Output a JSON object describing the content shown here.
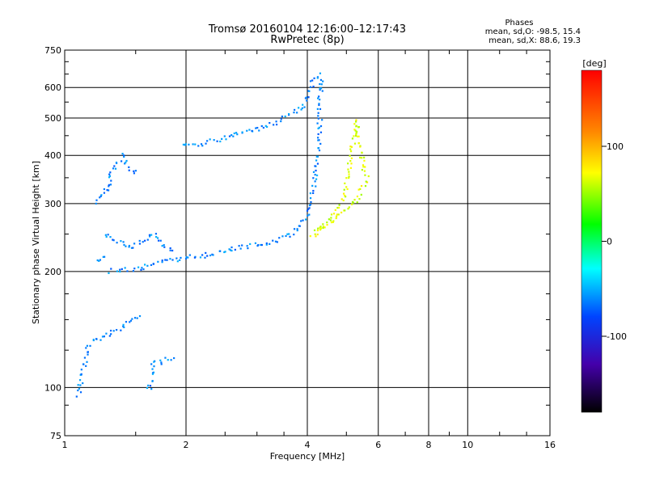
{
  "chart_data": {
    "type": "scatter",
    "title": "Tromsø 20160104 12:16:00–12:17:43",
    "subtitle": "RwPretec (8p)",
    "stats": {
      "heading": "Phases",
      "line1": "mean, sd,O: -98.5, 15.4",
      "line2": "mean, sd,X: 88.6, 19.3"
    },
    "xlabel": "Frequency [MHz]",
    "ylabel": "Stationary phase Virtual Height [km]",
    "xscale": "log",
    "yscale": "log",
    "xlim": [
      1,
      16
    ],
    "ylim": [
      75,
      750
    ],
    "grid": true,
    "x_major_ticks": [
      1,
      2,
      4,
      6,
      8,
      10,
      16
    ],
    "x_tick_labels": [
      "1",
      "2",
      "4",
      "6",
      "8",
      "10",
      "16"
    ],
    "y_major_ticks": [
      75,
      100,
      200,
      300,
      400,
      500,
      600,
      750
    ],
    "y_tick_labels": [
      "75",
      "100",
      "200",
      "300",
      "400",
      "500",
      "600",
      "750"
    ],
    "colorbar": {
      "label": "[deg]",
      "range": [
        -180,
        180
      ],
      "ticks": [
        100,
        0,
        -100
      ],
      "tick_labels": [
        "100",
        "0",
        "-100"
      ]
    },
    "series": [
      {
        "mode": "O",
        "phase_mean": -98.5,
        "phase_sd": 15.4,
        "points": [
          [
            1.3,
            200
          ],
          [
            1.4,
            202
          ],
          [
            1.55,
            205
          ],
          [
            1.7,
            210
          ],
          [
            1.9,
            215
          ],
          [
            2.1,
            218
          ],
          [
            2.3,
            222
          ],
          [
            2.5,
            226
          ],
          [
            2.7,
            230
          ],
          [
            2.9,
            233
          ],
          [
            3.1,
            236
          ],
          [
            3.3,
            240
          ],
          [
            3.5,
            245
          ],
          [
            3.7,
            252
          ],
          [
            3.85,
            262
          ],
          [
            3.95,
            275
          ],
          [
            4.05,
            292
          ],
          [
            4.12,
            315
          ],
          [
            4.18,
            345
          ],
          [
            4.22,
            380
          ],
          [
            4.25,
            420
          ],
          [
            4.27,
            460
          ],
          [
            4.29,
            500
          ],
          [
            4.3,
            540
          ],
          [
            4.31,
            580
          ],
          [
            4.32,
            620
          ],
          [
            4.3,
            645
          ],
          [
            4.2,
            640
          ],
          [
            4.1,
            615
          ],
          [
            4.05,
            580
          ],
          [
            3.98,
            540
          ],
          [
            3.7,
            520
          ],
          [
            3.45,
            495
          ],
          [
            3.2,
            480
          ],
          [
            3.0,
            470
          ],
          [
            2.8,
            460
          ],
          [
            2.6,
            450
          ],
          [
            2.4,
            440
          ],
          [
            2.2,
            430
          ],
          [
            2.05,
            428
          ],
          [
            1.95,
            425
          ],
          [
            1.2,
            300
          ],
          [
            1.25,
            320
          ],
          [
            1.3,
            330
          ],
          [
            1.3,
            360
          ],
          [
            1.35,
            380
          ],
          [
            1.4,
            400
          ],
          [
            1.45,
            370
          ],
          [
            1.5,
            360
          ],
          [
            1.25,
            250
          ],
          [
            1.35,
            240
          ],
          [
            1.45,
            230
          ],
          [
            1.55,
            240
          ],
          [
            1.65,
            250
          ],
          [
            1.75,
            235
          ],
          [
            1.85,
            225
          ],
          [
            1.25,
            220
          ],
          [
            1.2,
            210
          ],
          [
            1.08,
            95
          ],
          [
            1.1,
            105
          ],
          [
            1.12,
            115
          ],
          [
            1.15,
            130
          ],
          [
            1.42,
            145
          ],
          [
            1.48,
            150
          ],
          [
            1.52,
            155
          ],
          [
            1.85,
            120
          ],
          [
            1.65,
            115
          ],
          [
            1.62,
            98
          ]
        ]
      },
      {
        "mode": "X",
        "phase_mean": 88.6,
        "phase_sd": 19.3,
        "points": [
          [
            4.1,
            248
          ],
          [
            4.25,
            255
          ],
          [
            4.4,
            262
          ],
          [
            4.55,
            272
          ],
          [
            4.7,
            285
          ],
          [
            4.85,
            300
          ],
          [
            4.95,
            320
          ],
          [
            5.0,
            340
          ],
          [
            5.05,
            360
          ],
          [
            5.1,
            385
          ],
          [
            5.15,
            410
          ],
          [
            5.2,
            440
          ],
          [
            5.25,
            470
          ],
          [
            5.3,
            495
          ],
          [
            5.35,
            460
          ],
          [
            5.4,
            430
          ],
          [
            5.45,
            400
          ],
          [
            5.5,
            380
          ],
          [
            5.55,
            360
          ],
          [
            5.6,
            350
          ],
          [
            5.5,
            330
          ],
          [
            5.35,
            310
          ],
          [
            5.2,
            300
          ],
          [
            5.0,
            290
          ],
          [
            4.8,
            280
          ],
          [
            4.6,
            270
          ]
        ]
      }
    ]
  }
}
